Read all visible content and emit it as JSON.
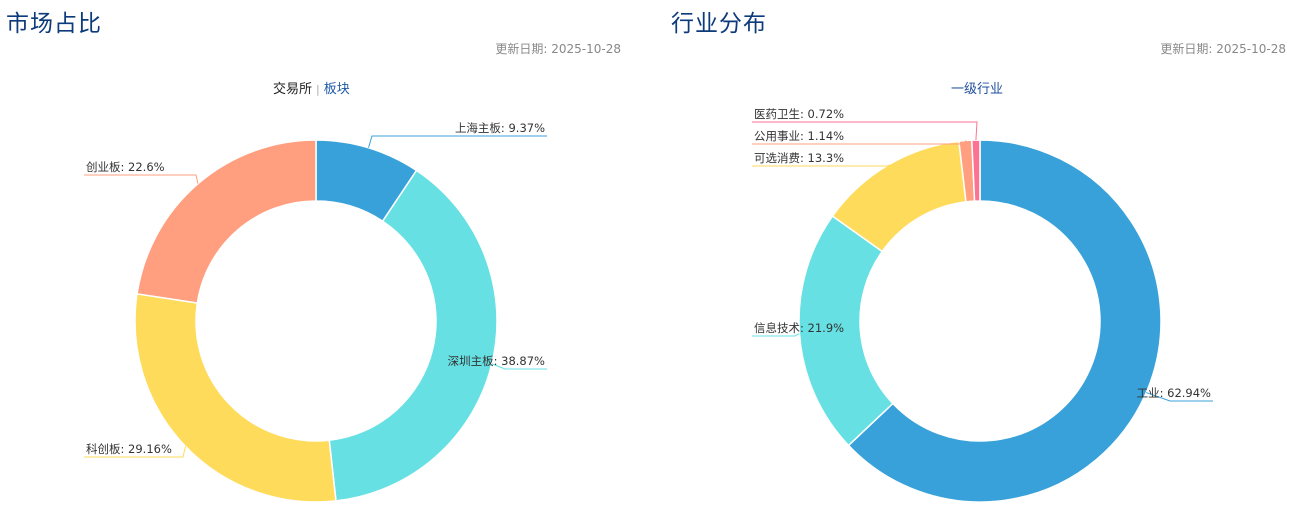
{
  "market": {
    "title": "市场占比",
    "update_date": "更新日期: 2025-10-28",
    "tabs": [
      {
        "label": "交易所",
        "active": true
      },
      {
        "label": "板块",
        "active": false
      }
    ],
    "tab_separator": "|"
  },
  "industry": {
    "title": "行业分布",
    "update_date": "更新日期: 2025-10-28",
    "subtitle": "一级行业"
  },
  "colors": {
    "blue": "#38a1d9",
    "cyan": "#66e0e3",
    "yellow": "#ffdb5c",
    "salmon": "#ff9f7f",
    "pink": "#fb7293",
    "title": "#0d3a7a",
    "link": "#1f5aa8"
  },
  "chart_data": [
    {
      "type": "pie",
      "style": "donut",
      "categories": [
        "上海主板",
        "深圳主板",
        "科创板",
        "创业板"
      ],
      "values": [
        9.37,
        38.87,
        29.16,
        22.6
      ],
      "labels": [
        "上海主板: 9.37%",
        "深圳主板: 38.87%",
        "科创板: 29.16%",
        "创业板: 22.6%"
      ],
      "colors": [
        "#38a1d9",
        "#66e0e3",
        "#ffdb5c",
        "#ff9f7f"
      ],
      "unit": "%"
    },
    {
      "type": "pie",
      "style": "donut",
      "categories": [
        "工业",
        "信息技术",
        "可选消费",
        "公用事业",
        "医药卫生"
      ],
      "values": [
        62.94,
        21.9,
        13.3,
        1.14,
        0.72
      ],
      "labels": [
        "工业: 62.94%",
        "信息技术: 21.9%",
        "可选消费: 13.3%",
        "公用事业: 1.14%",
        "医药卫生: 0.72%"
      ],
      "colors": [
        "#38a1d9",
        "#66e0e3",
        "#ffdb5c",
        "#ff9f7f",
        "#fb7293"
      ],
      "unit": "%"
    }
  ]
}
